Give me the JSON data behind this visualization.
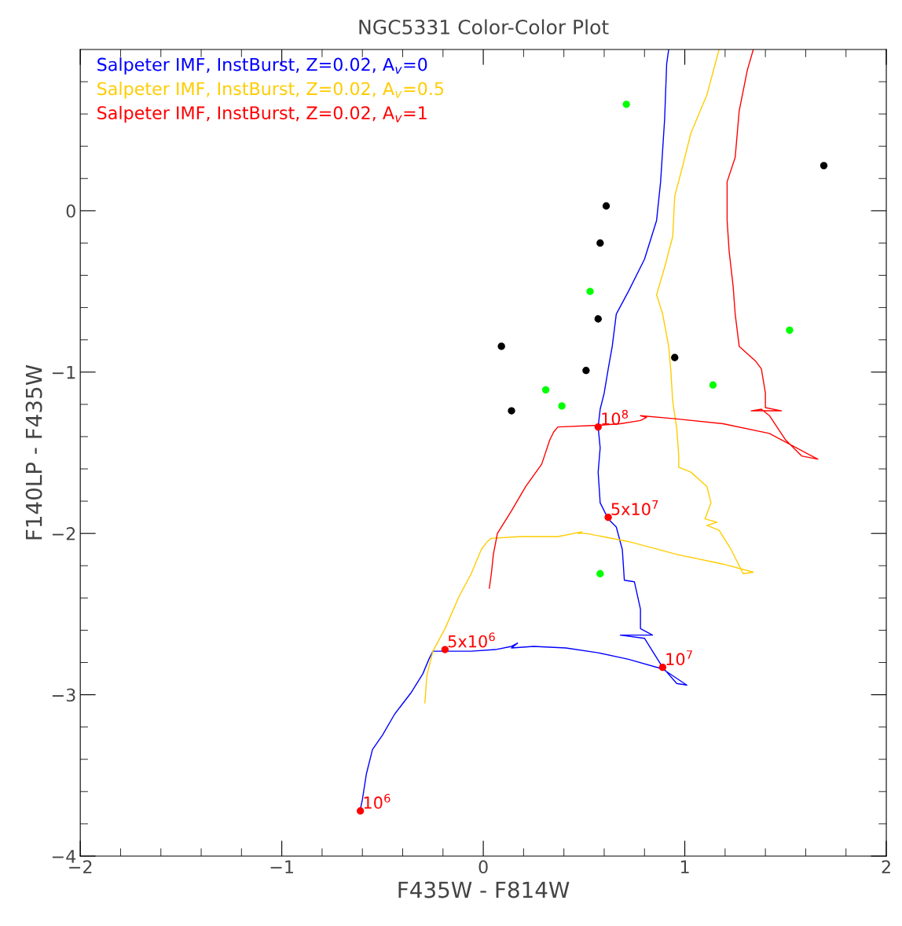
{
  "chart_data": {
    "type": "line",
    "title": "NGC5331 Color-Color Plot",
    "xlabel": "F435W - F814W",
    "ylabel": "F140LP - F435W",
    "xlim": [
      -2,
      2
    ],
    "ylim": [
      -4,
      1
    ],
    "xticks": [
      -2,
      {
        "value": -1.8,
        "label": null
      },
      {
        "value": -1.6,
        "label": null
      },
      {
        "value": -1.4,
        "label": null
      },
      {
        "value": -1.2,
        "label": null
      },
      -1,
      {
        "value": -0.8,
        "label": null
      },
      {
        "value": -0.6,
        "label": null
      },
      {
        "value": -0.4,
        "label": null
      },
      {
        "value": -0.2,
        "label": null
      },
      0,
      {
        "value": 0.2,
        "label": null
      },
      {
        "value": 0.4,
        "label": null
      },
      {
        "value": 0.6,
        "label": null
      },
      {
        "value": 0.8,
        "label": null
      },
      1,
      {
        "value": 1.2,
        "label": null
      },
      {
        "value": 1.4,
        "label": null
      },
      {
        "value": 1.6,
        "label": null
      },
      {
        "value": 1.8,
        "label": null
      },
      2
    ],
    "yticks": [
      -4,
      {
        "value": -3.8,
        "label": null
      },
      {
        "value": -3.6,
        "label": null
      },
      {
        "value": -3.4,
        "label": null
      },
      {
        "value": -3.2,
        "label": null
      },
      -3,
      {
        "value": -2.8,
        "label": null
      },
      {
        "value": -2.6,
        "label": null
      },
      {
        "value": -2.4,
        "label": null
      },
      {
        "value": -2.2,
        "label": null
      },
      -2,
      {
        "value": -1.8,
        "label": null
      },
      {
        "value": -1.6,
        "label": null
      },
      {
        "value": -1.4,
        "label": null
      },
      {
        "value": -1.2,
        "label": null
      },
      -1,
      {
        "value": -0.8,
        "label": null
      },
      {
        "value": -0.6,
        "label": null
      },
      {
        "value": -0.4,
        "label": null
      },
      {
        "value": -0.2,
        "label": null
      },
      0,
      {
        "value": 0.2,
        "label": null
      },
      {
        "value": 0.4,
        "label": null
      },
      {
        "value": 0.6,
        "label": null
      },
      {
        "value": 0.8,
        "label": null
      }
    ],
    "grid": false,
    "legend": "top left",
    "series": [
      {
        "name": "Salpeter IMF, InstBurst, Z=0.02, A$_{v}$=0",
        "color": "#0000ff",
        "x": [
          -0.61,
          -0.6,
          -0.58,
          -0.55,
          -0.5,
          -0.44,
          -0.36,
          -0.3,
          -0.27,
          -0.25,
          -0.19,
          -0.06,
          0.06,
          0.14,
          0.17,
          0.14,
          0.25,
          0.41,
          0.57,
          0.72,
          0.89,
          1.01,
          0.96,
          0.89,
          0.84,
          0.8,
          0.68,
          0.84,
          0.78,
          0.78,
          0.75,
          0.7,
          0.69,
          0.66,
          0.62,
          0.58,
          0.57,
          0.58,
          0.57,
          0.58,
          0.6,
          0.62,
          0.64,
          0.66,
          0.72,
          0.8,
          0.86,
          0.88,
          0.9,
          0.91,
          0.92
        ],
        "values": [
          -3.71,
          -3.65,
          -3.49,
          -3.34,
          -3.25,
          -3.12,
          -2.99,
          -2.87,
          -2.78,
          -2.73,
          -2.73,
          -2.73,
          -2.72,
          -2.7,
          -2.68,
          -2.71,
          -2.7,
          -2.71,
          -2.74,
          -2.78,
          -2.84,
          -2.94,
          -2.93,
          -2.83,
          -2.73,
          -2.65,
          -2.63,
          -2.63,
          -2.59,
          -2.47,
          -2.3,
          -2.29,
          -2.1,
          -1.96,
          -1.91,
          -1.81,
          -1.62,
          -1.47,
          -1.34,
          -1.23,
          -1.13,
          -0.98,
          -0.84,
          -0.64,
          -0.5,
          -0.3,
          -0.06,
          0.18,
          0.57,
          0.91,
          1.0
        ]
      },
      {
        "name": "Salpeter IMF, InstBurst, Z=0.02, A$_{v}$=0.5",
        "color": "#ffcc00",
        "x": [
          -0.29,
          -0.28,
          -0.25,
          -0.19,
          -0.12,
          -0.06,
          -0.01,
          0.02,
          0.04,
          0.18,
          0.37,
          0.49,
          0.47,
          0.51,
          0.72,
          0.96,
          1.19,
          1.34,
          1.29,
          1.23,
          1.17,
          1.11,
          1.16,
          1.1,
          1.13,
          1.11,
          1.03,
          0.97,
          0.97,
          0.96,
          0.94,
          0.93,
          0.92,
          0.89,
          0.86,
          0.9,
          0.94,
          0.95,
          0.99,
          1.03,
          1.11,
          1.17
        ],
        "values": [
          -3.05,
          -2.88,
          -2.73,
          -2.59,
          -2.39,
          -2.25,
          -2.1,
          -2.05,
          -2.03,
          -2.02,
          -2.02,
          -1.99,
          -2.0,
          -2.0,
          -2.05,
          -2.13,
          -2.19,
          -2.24,
          -2.25,
          -2.1,
          -1.98,
          -1.95,
          -1.93,
          -1.91,
          -1.81,
          -1.71,
          -1.62,
          -1.59,
          -1.52,
          -1.35,
          -1.18,
          -0.98,
          -0.84,
          -0.64,
          -0.52,
          -0.35,
          -0.16,
          0.09,
          0.28,
          0.48,
          0.72,
          1.0
        ]
      },
      {
        "name": "Salpeter IMF, InstBurst, Z=0.02, A$_{v}$=1",
        "color": "#ff0000",
        "x": [
          0.03,
          0.04,
          0.05,
          0.07,
          0.14,
          0.21,
          0.29,
          0.33,
          0.35,
          0.37,
          0.57,
          0.68,
          0.78,
          0.81,
          0.78,
          0.96,
          1.19,
          1.42,
          1.66,
          1.58,
          1.5,
          1.42,
          1.38,
          1.33,
          1.48,
          1.4,
          1.4,
          1.38,
          1.35,
          1.27,
          1.25,
          1.24,
          1.22,
          1.21,
          1.21,
          1.25,
          1.27,
          1.31,
          1.34
        ],
        "values": [
          -2.34,
          -2.25,
          -2.13,
          -2.0,
          -1.86,
          -1.71,
          -1.57,
          -1.42,
          -1.37,
          -1.34,
          -1.33,
          -1.32,
          -1.3,
          -1.28,
          -1.27,
          -1.29,
          -1.32,
          -1.38,
          -1.54,
          -1.52,
          -1.42,
          -1.27,
          -1.23,
          -1.24,
          -1.24,
          -1.22,
          -1.13,
          -0.98,
          -0.93,
          -0.84,
          -0.64,
          -0.47,
          -0.25,
          -0.06,
          0.18,
          0.33,
          0.62,
          0.87,
          1.0
        ]
      },
      {
        "type": "scatter",
        "color": "#00ff00",
        "marker": "circle",
        "x": [
          0.71,
          0.53,
          0.31,
          0.39,
          1.52,
          1.14,
          0.58
        ],
        "values": [
          0.66,
          -0.5,
          -1.11,
          -1.21,
          -0.74,
          -1.08,
          -2.25
        ]
      },
      {
        "type": "scatter",
        "color": "#000000",
        "marker": "circle",
        "x": [
          0.61,
          1.69,
          0.58,
          0.57,
          0.09,
          0.51,
          0.95,
          0.14
        ],
        "values": [
          0.03,
          0.28,
          -0.2,
          -0.67,
          -0.84,
          -0.99,
          -0.91,
          -1.24
        ]
      },
      {
        "type": "scatter",
        "color": "#ff0000",
        "marker": "circle",
        "x": [
          -0.61,
          -0.19,
          0.89,
          0.62,
          0.57
        ],
        "values": [
          -3.72,
          -2.72,
          -2.83,
          -1.9,
          -1.34
        ]
      }
    ],
    "annotations": [
      {
        "text": "10$^{6}$",
        "x": -0.61,
        "y": -3.72
      },
      {
        "text": "5x10$^{6}$",
        "x": -0.19,
        "y": -2.72
      },
      {
        "text": "10$^{7}$",
        "x": 0.89,
        "y": -2.83
      },
      {
        "text": "5x10$^{7}$",
        "x": 0.62,
        "y": -1.9
      },
      {
        "text": "10$^{8}$",
        "x": 0.57,
        "y": -1.34
      }
    ]
  }
}
